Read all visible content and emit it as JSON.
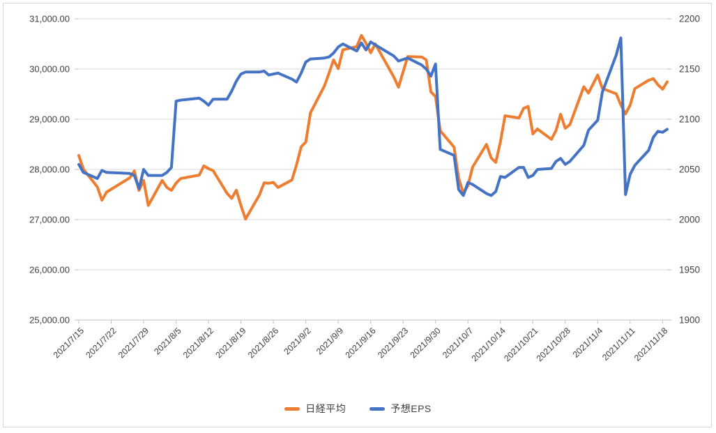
{
  "chart_data": {
    "type": "line",
    "title": "",
    "xlabel": "",
    "ylabel_left": "",
    "ylabel_right": "",
    "grid": true,
    "legend_position": "bottom",
    "colors": {
      "nikkei": "#ED7D31",
      "eps": "#4472C4",
      "gridline": "#D9D9D9",
      "axis_line": "#BFBFBF",
      "tick_label": "#404040",
      "background": "#FFFFFF"
    },
    "left_axis": {
      "range": [
        25000,
        31000
      ],
      "tick_labels": [
        "31,000.00",
        "30,000.00",
        "29,000.00",
        "28,000.00",
        "27,000.00",
        "26,000.00",
        "25,000.00"
      ]
    },
    "right_axis": {
      "range": [
        1900,
        2200
      ],
      "tick_labels": [
        "2200",
        "2150",
        "2100",
        "2050",
        "2000",
        "1950",
        "1900"
      ]
    },
    "x_tick_labels": [
      "2021/7/15",
      "2021/7/22",
      "2021/7/29",
      "2021/8/5",
      "2021/8/12",
      "2021/8/19",
      "2021/8/26",
      "2021/9/2",
      "2021/9/9",
      "2021/9/16",
      "2021/9/23",
      "2021/9/30",
      "2021/10/7",
      "2021/10/14",
      "2021/10/21",
      "2021/10/28",
      "2021/11/4",
      "2021/11/11",
      "2021/11/18"
    ],
    "dates": [
      "2021/7/15",
      "2021/7/16",
      "2021/7/19",
      "2021/7/20",
      "2021/7/21",
      "2021/7/26",
      "2021/7/27",
      "2021/7/28",
      "2021/7/29",
      "2021/7/30",
      "2021/8/2",
      "2021/8/3",
      "2021/8/4",
      "2021/8/5",
      "2021/8/6",
      "2021/8/10",
      "2021/8/11",
      "2021/8/12",
      "2021/8/13",
      "2021/8/16",
      "2021/8/17",
      "2021/8/18",
      "2021/8/19",
      "2021/8/20",
      "2021/8/23",
      "2021/8/24",
      "2021/8/25",
      "2021/8/26",
      "2021/8/27",
      "2021/8/30",
      "2021/8/31",
      "2021/9/1",
      "2021/9/2",
      "2021/9/3",
      "2021/9/6",
      "2021/9/7",
      "2021/9/8",
      "2021/9/9",
      "2021/9/10",
      "2021/9/13",
      "2021/9/14",
      "2021/9/15",
      "2021/9/16",
      "2021/9/17",
      "2021/9/21",
      "2021/9/22",
      "2021/9/24",
      "2021/9/27",
      "2021/9/28",
      "2021/9/29",
      "2021/9/30",
      "2021/10/1",
      "2021/10/4",
      "2021/10/5",
      "2021/10/6",
      "2021/10/7",
      "2021/10/8",
      "2021/10/11",
      "2021/10/12",
      "2021/10/13",
      "2021/10/14",
      "2021/10/15",
      "2021/10/18",
      "2021/10/19",
      "2021/10/20",
      "2021/10/21",
      "2021/10/22",
      "2021/10/25",
      "2021/10/26",
      "2021/10/27",
      "2021/10/28",
      "2021/10/29",
      "2021/11/1",
      "2021/11/2",
      "2021/11/4",
      "2021/11/5",
      "2021/11/8",
      "2021/11/9",
      "2021/11/10",
      "2021/11/11",
      "2021/11/12",
      "2021/11/15",
      "2021/11/16",
      "2021/11/17",
      "2021/11/18",
      "2021/11/19"
    ],
    "series": [
      {
        "name": "日経平均",
        "axis": "left",
        "color": "#ED7D31",
        "values": [
          28279,
          28003,
          27653,
          27388,
          27548,
          27833,
          27970,
          27582,
          27782,
          27284,
          27781,
          27642,
          27584,
          27728,
          27820,
          27888,
          28071,
          28015,
          27977,
          27523,
          27424,
          27586,
          27281,
          27013,
          27494,
          27732,
          27725,
          27742,
          27641,
          27789,
          28090,
          28451,
          28544,
          29128,
          29660,
          29916,
          30181,
          30008,
          30382,
          30447,
          30670,
          30512,
          30323,
          30500,
          29840,
          29639,
          30249,
          30240,
          30184,
          29544,
          29453,
          28771,
          28445,
          27822,
          27529,
          27678,
          28049,
          28498,
          28231,
          28140,
          28551,
          29069,
          29025,
          29216,
          29256,
          28709,
          28805,
          28600,
          28775,
          29098,
          28820,
          28893,
          29647,
          29521,
          29880,
          29612,
          29507,
          29285,
          29107,
          29278,
          29610,
          29777,
          29808,
          29688,
          29599,
          29746
        ]
      },
      {
        "name": "予想EPS",
        "axis": "right",
        "color": "#4472C4",
        "values": [
          2055,
          2047,
          2041,
          2049,
          2047,
          2046,
          2044,
          2031,
          2050,
          2044,
          2044,
          2047,
          2052,
          2118,
          2119,
          2121,
          2118,
          2114,
          2120,
          2120,
          2128,
          2138,
          2145,
          2147,
          2147,
          2148,
          2144,
          2145,
          2146,
          2140,
          2137,
          2146,
          2157,
          2160,
          2161,
          2162,
          2166,
          2172,
          2175,
          2168,
          2176,
          2169,
          2177,
          2174,
          2163,
          2158,
          2161,
          2154,
          2150,
          2143,
          2155,
          2070,
          2064,
          2030,
          2024,
          2037,
          2035,
          2026,
          2024,
          2028,
          2043,
          2042,
          2052,
          2052,
          2042,
          2044,
          2050,
          2051,
          2058,
          2061,
          2055,
          2058,
          2074,
          2089,
          2099,
          2127,
          2164,
          2181,
          2025,
          2045,
          2054,
          2069,
          2082,
          2088,
          2087,
          2090
        ]
      }
    ]
  },
  "legend": {
    "nikkei_label": "日経平均",
    "eps_label": "予想EPS"
  }
}
